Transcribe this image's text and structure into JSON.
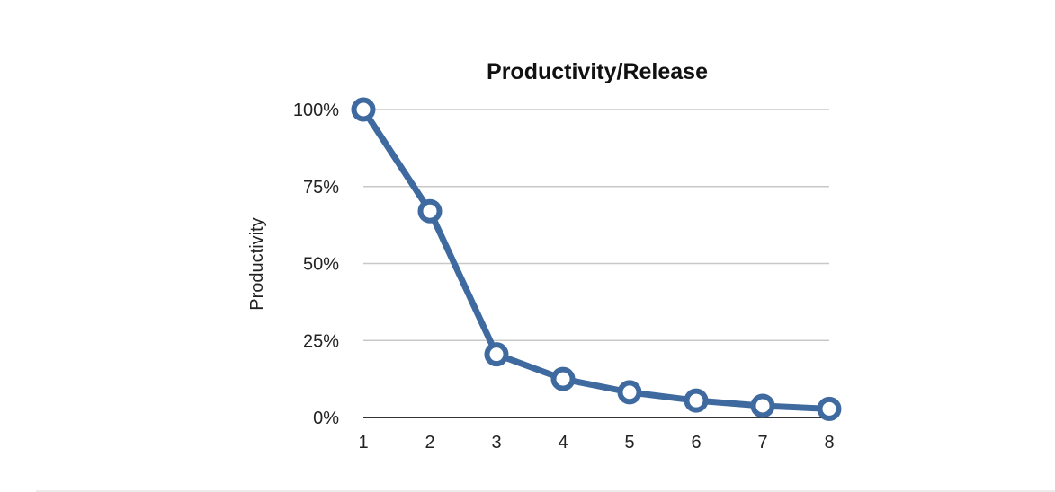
{
  "chart_data": {
    "type": "line",
    "title": "Productivity/Release",
    "xlabel": "",
    "ylabel": "Productivity",
    "x": [
      1,
      2,
      3,
      4,
      5,
      6,
      7,
      8
    ],
    "series": [
      {
        "values": [
          100,
          67,
          20.5,
          12.5,
          8.2,
          5.5,
          3.8,
          2.8
        ]
      }
    ],
    "ylim": [
      0,
      100
    ],
    "yticks": [
      0,
      25,
      50,
      75,
      100
    ],
    "ytick_labels": [
      "0%",
      "25%",
      "50%",
      "75%",
      "100%"
    ],
    "xtick_labels": [
      "1",
      "2",
      "3",
      "4",
      "5",
      "6",
      "7",
      "8"
    ],
    "grid": true,
    "line_color": "#3f6aa0",
    "marker_fill": "#ffffff"
  }
}
